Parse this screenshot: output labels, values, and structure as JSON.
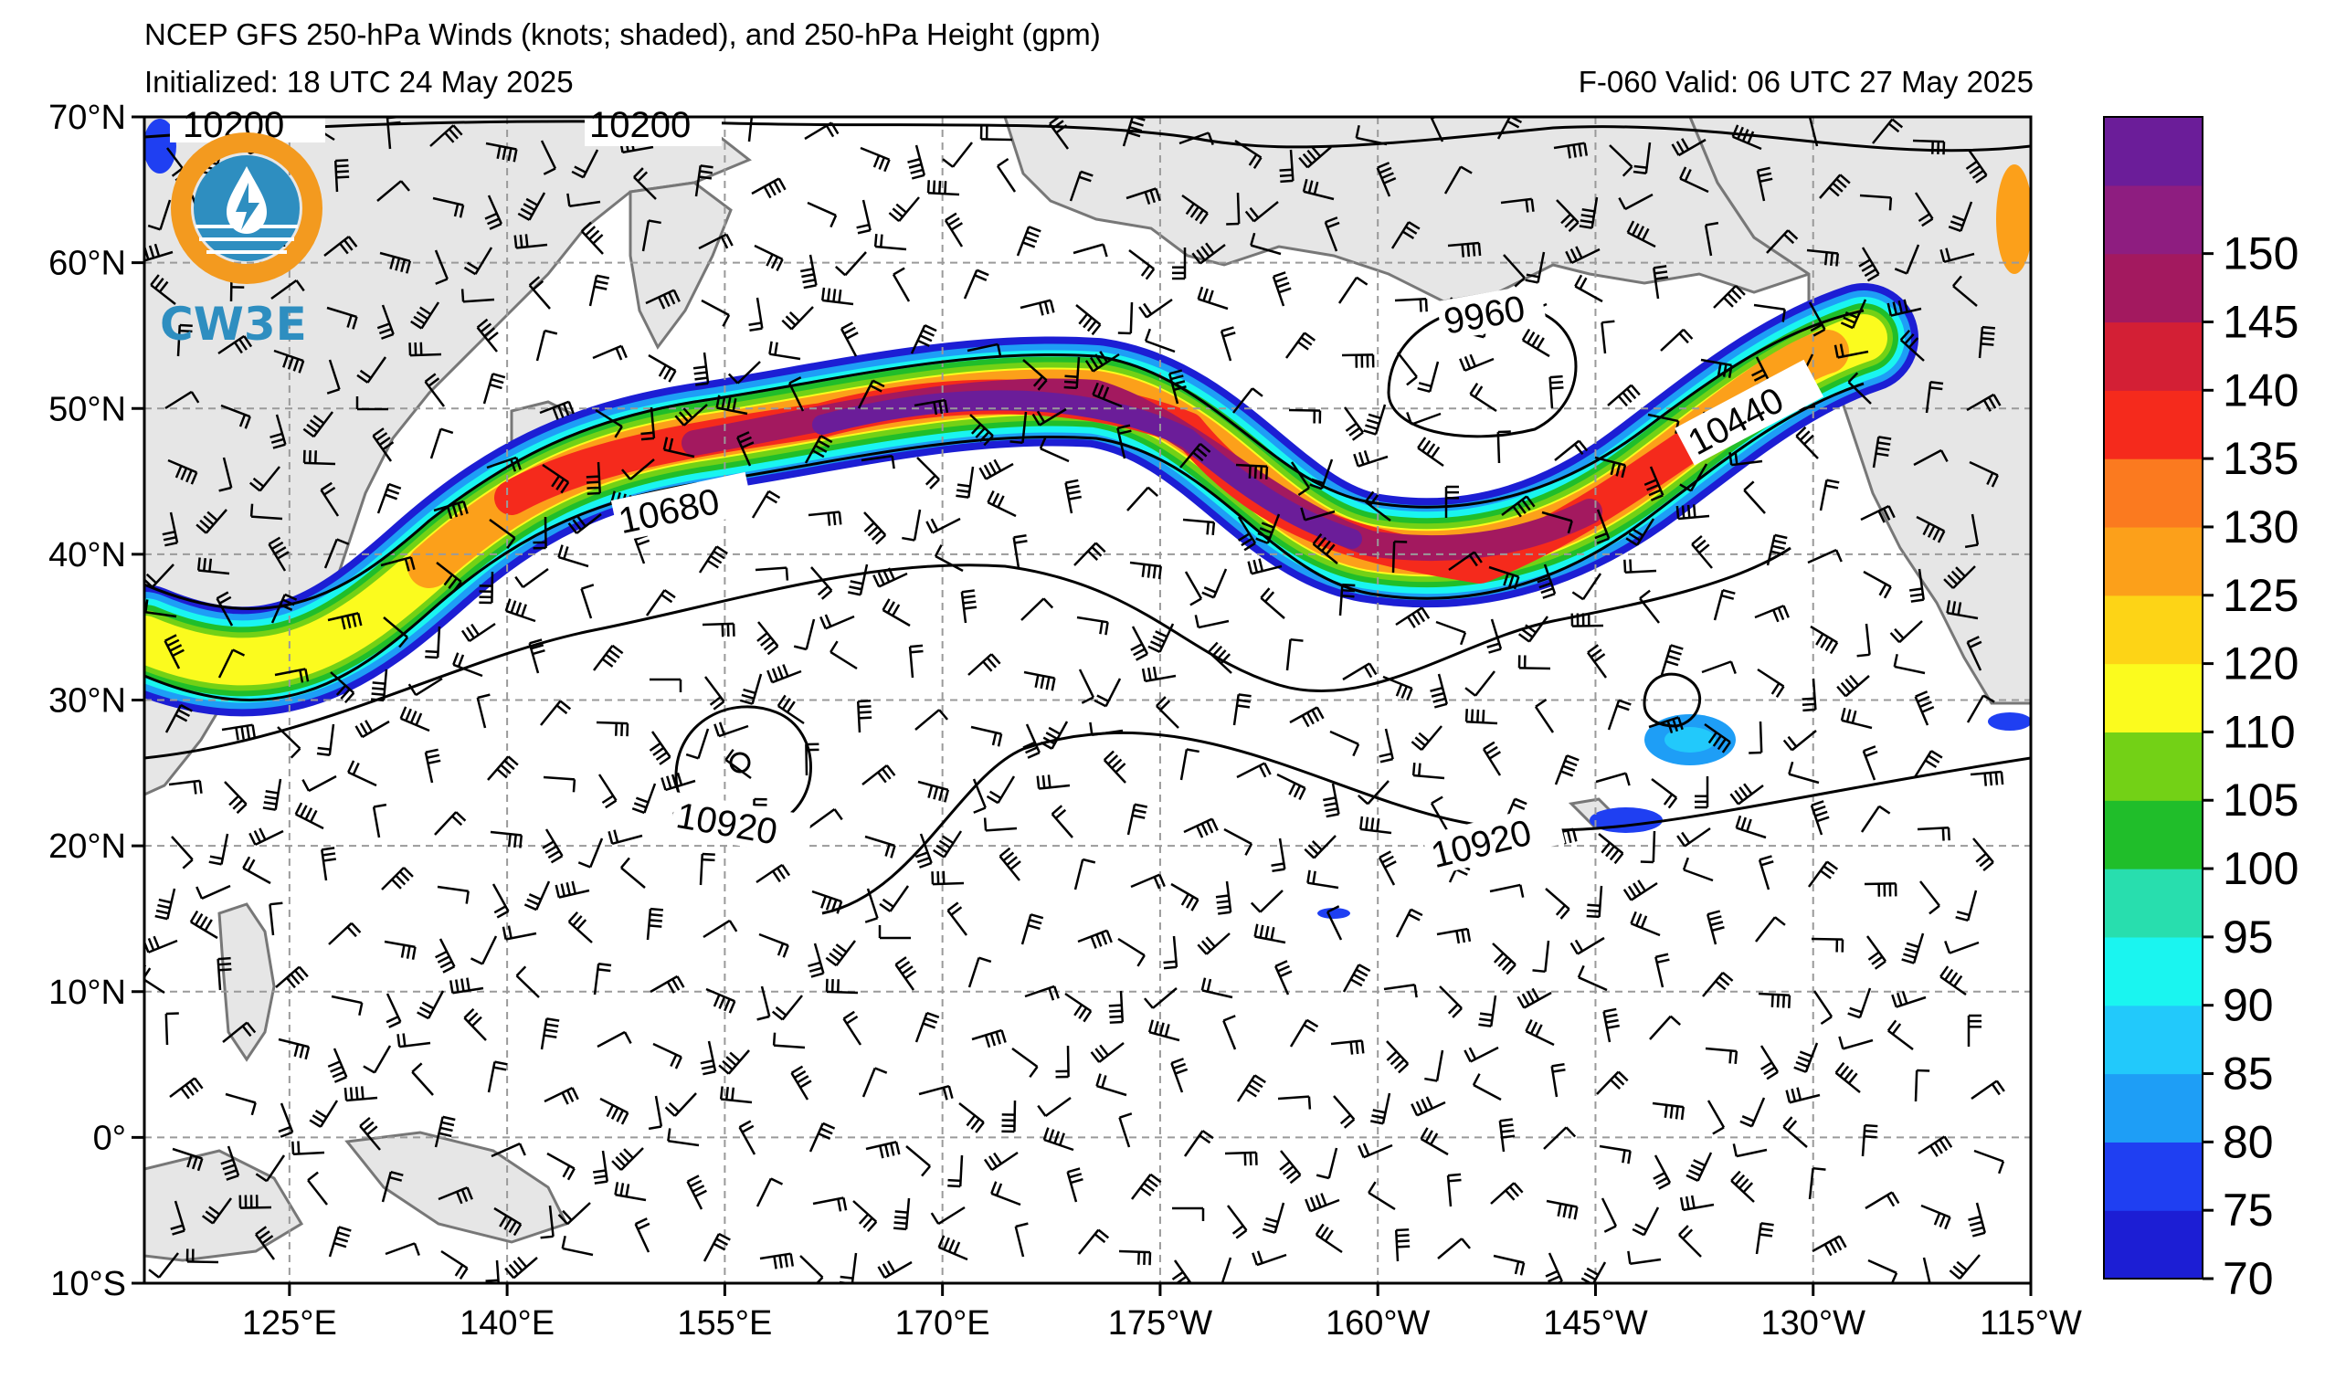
{
  "title": {
    "line1": "NCEP GFS 250-hPa Winds (knots; shaded), and 250-hPa Height (gpm)",
    "initialized": "Initialized: 18 UTC 24 May 2025",
    "valid": "F-060  Valid: 06 UTC 27 May 2025"
  },
  "logo": {
    "text": "CW3E",
    "ring_color": "#f39a1f",
    "body_color": "#2e8ec0"
  },
  "axes": {
    "lat_labels": [
      "70°N",
      "60°N",
      "50°N",
      "40°N",
      "30°N",
      "20°N",
      "10°N",
      "0°",
      "10°S"
    ],
    "lon_labels": [
      "125°E",
      "140°E",
      "155°E",
      "170°E",
      "175°W",
      "160°W",
      "145°W",
      "130°W",
      "115°W"
    ],
    "lat_range": [
      -10,
      70
    ],
    "lon_range": [
      115,
      245
    ]
  },
  "colorbar": {
    "labels": [
      "70",
      "75",
      "80",
      "85",
      "90",
      "95",
      "100",
      "105",
      "110",
      "120",
      "125",
      "130",
      "135",
      "140",
      "145",
      "150"
    ],
    "colors": [
      "#1c1ed4",
      "#1f3ff2",
      "#1e9ef6",
      "#22c9fb",
      "#1af5f0",
      "#28deae",
      "#20be2a",
      "#73d116",
      "#fbfb1e",
      "#fdd416",
      "#fca01a",
      "#fb7a1f",
      "#f52a1c",
      "#d31f35",
      "#a3195f",
      "#8e1d80",
      "#6b1d99"
    ]
  },
  "contours": {
    "labels": [
      "10200",
      "10200",
      "9960",
      "10440",
      "10680",
      "10920",
      "10920"
    ]
  },
  "map": {
    "land_color": "#e6e6e6",
    "ocean_color": "#ffffff",
    "grid_color": "#9a9a9a"
  }
}
